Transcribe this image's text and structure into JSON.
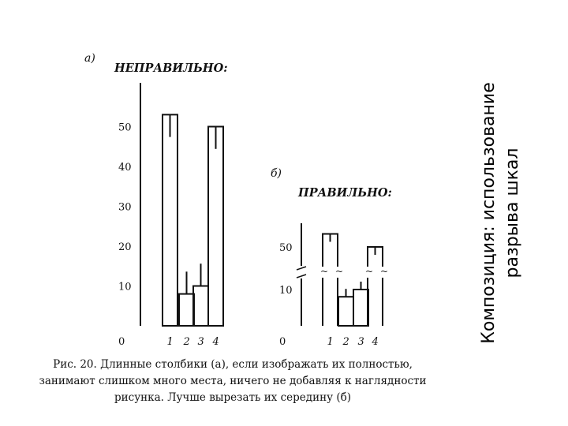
{
  "slide_title": "Композиция: использование разрыва шкал",
  "caption": "Рис. 20. Длинные столбики (а), если изображать их полностью, занимают слишком много места, ничего не добавляя к наглядности рисунка. Лучше вырезать их середину (б)",
  "colors": {
    "ink": "#111111",
    "background": "#ffffff"
  },
  "chart_data": [
    {
      "type": "bar",
      "panel_label": "а)",
      "title": "НЕПРАВИЛЬНО:",
      "categories": [
        "1",
        "2",
        "3",
        "4"
      ],
      "values": [
        53,
        8,
        10,
        50
      ],
      "error_bars": [
        2,
        2,
        2,
        2
      ],
      "ylim": [
        0,
        50
      ],
      "yticks": [
        "0",
        "10",
        "20",
        "30",
        "40",
        "50"
      ],
      "axis_break": false
    },
    {
      "type": "bar",
      "panel_label": "б)",
      "title": "ПРАВИЛЬНО:",
      "categories": [
        "1",
        "2",
        "3",
        "4"
      ],
      "values": [
        53,
        8,
        10,
        50
      ],
      "error_bars": [
        2,
        2,
        2,
        2
      ],
      "yticks": [
        "0",
        "10",
        "50"
      ],
      "axis_break": true
    }
  ]
}
